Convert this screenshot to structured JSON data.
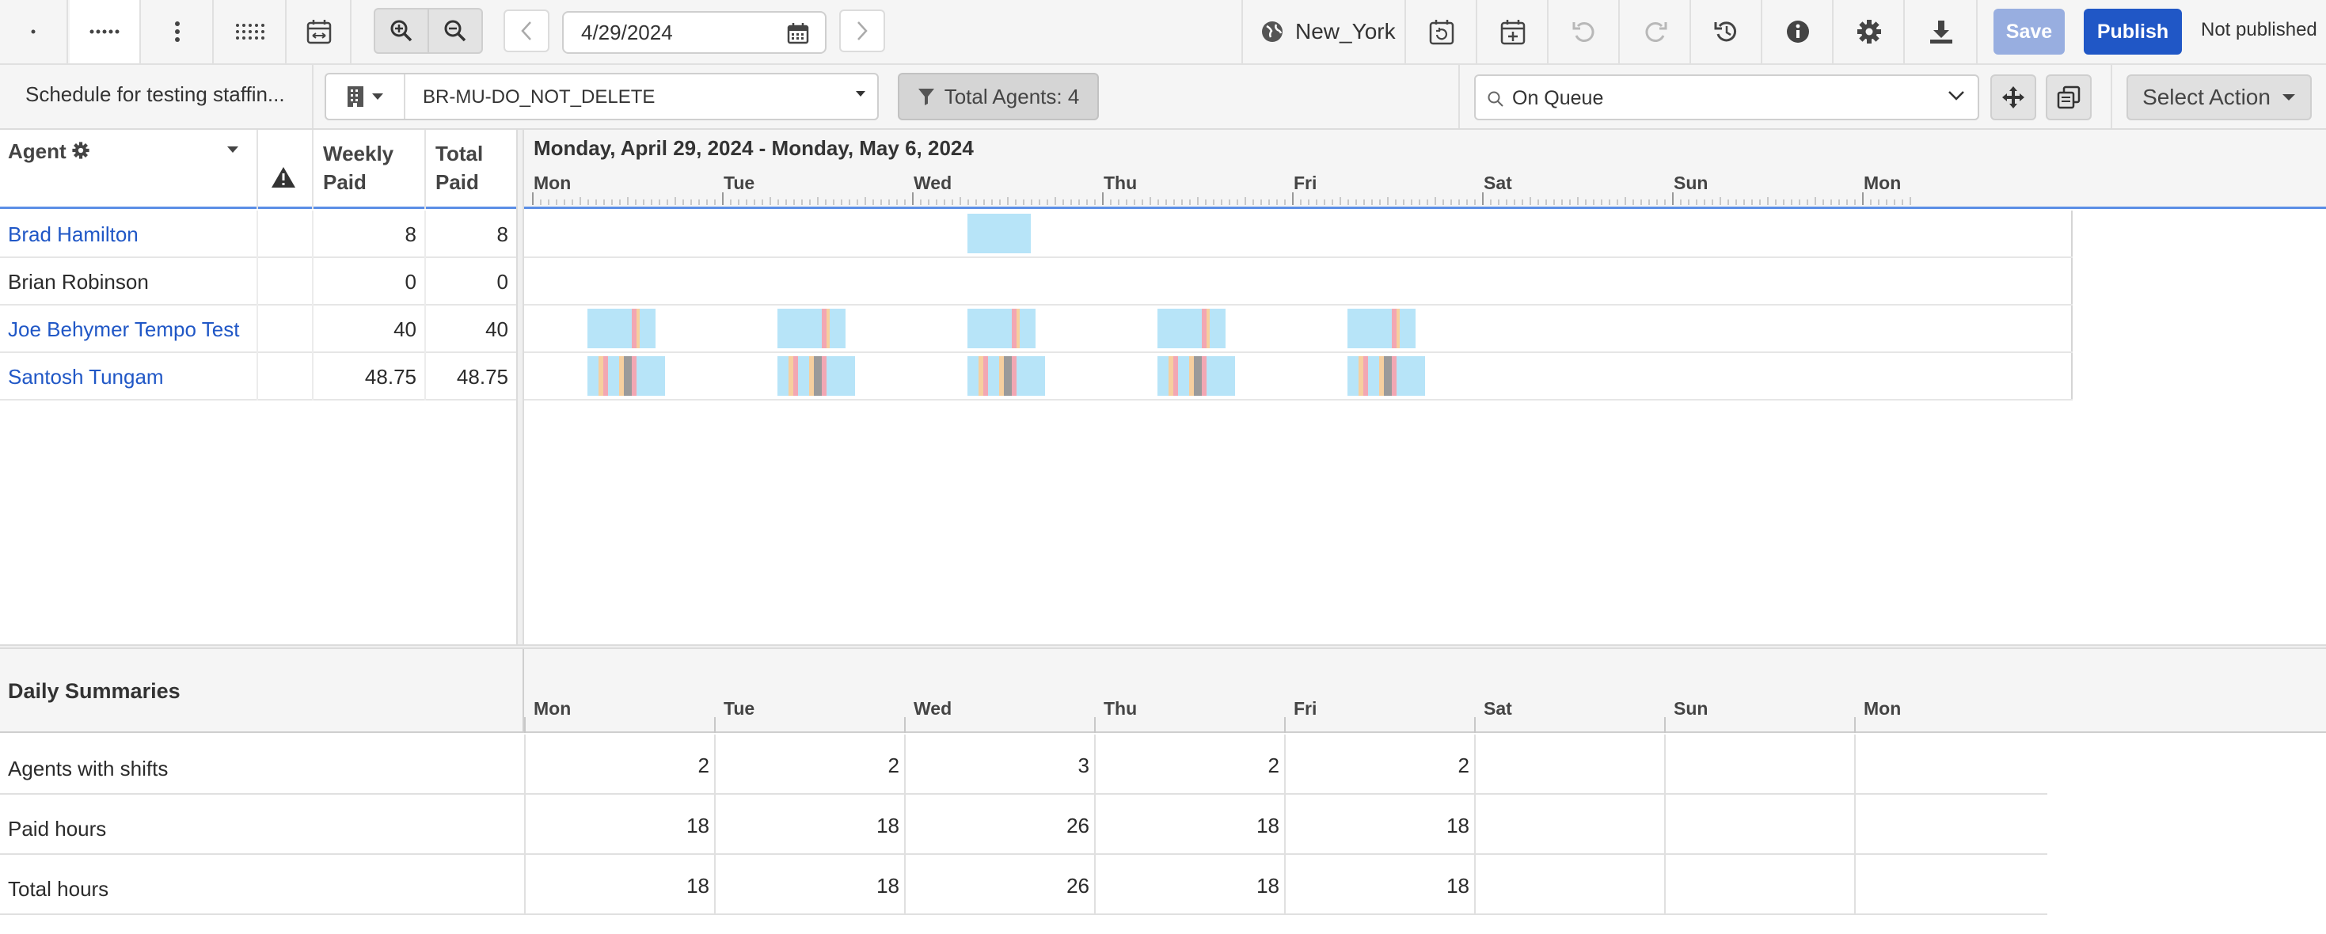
{
  "toolbar": {
    "date": "4/29/2024",
    "timezone": "New_York",
    "save_label": "Save",
    "publish_label": "Publish",
    "publish_status": "Not published"
  },
  "subtoolbar": {
    "schedule_name": "Schedule for testing staffin...",
    "business_unit": "BR-MU-DO_NOT_DELETE",
    "total_agents": "Total Agents: 4",
    "activity_filter": "On Queue",
    "select_action": "Select Action"
  },
  "agent_grid": {
    "columns": {
      "agent": "Agent",
      "weekly_paid": "Weekly Paid",
      "total_paid": "Total Paid"
    },
    "rows": [
      {
        "name": "Brad Hamilton",
        "weekly_paid": "8",
        "total_paid": "8",
        "link": true
      },
      {
        "name": "Brian Robinson",
        "weekly_paid": "0",
        "total_paid": "0",
        "link": false
      },
      {
        "name": "Joe Behymer Tempo Test",
        "weekly_paid": "40",
        "total_paid": "40",
        "link": true
      },
      {
        "name": "Santosh Tungam",
        "weekly_paid": "48.75",
        "total_paid": "48.75",
        "link": true
      }
    ]
  },
  "schedule": {
    "range": "Monday, April 29, 2024 - Monday, May 6, 2024",
    "days": [
      "Mon",
      "Tue",
      "Wed",
      "Thu",
      "Fri",
      "Sat",
      "Sun",
      "Mon"
    ]
  },
  "summaries": {
    "title": "Daily Summaries",
    "days": [
      "Mon",
      "Tue",
      "Wed",
      "Thu",
      "Fri",
      "Sat",
      "Sun",
      "Mon"
    ],
    "rows": [
      {
        "label": "Agents with shifts",
        "values": [
          "2",
          "2",
          "3",
          "2",
          "2",
          "",
          "",
          ""
        ]
      },
      {
        "label": "Paid hours",
        "values": [
          "18",
          "18",
          "26",
          "18",
          "18",
          "",
          "",
          ""
        ]
      },
      {
        "label": "Total hours",
        "values": [
          "18",
          "18",
          "26",
          "18",
          "18",
          "",
          "",
          ""
        ]
      }
    ]
  },
  "colors": {
    "shift": "#b7e4f8",
    "break_pink": "#f2a7b3",
    "break_orange": "#f6cf9f",
    "meal_gray": "#9a9a9a",
    "publish": "#2057c6",
    "link": "#2057c6"
  }
}
